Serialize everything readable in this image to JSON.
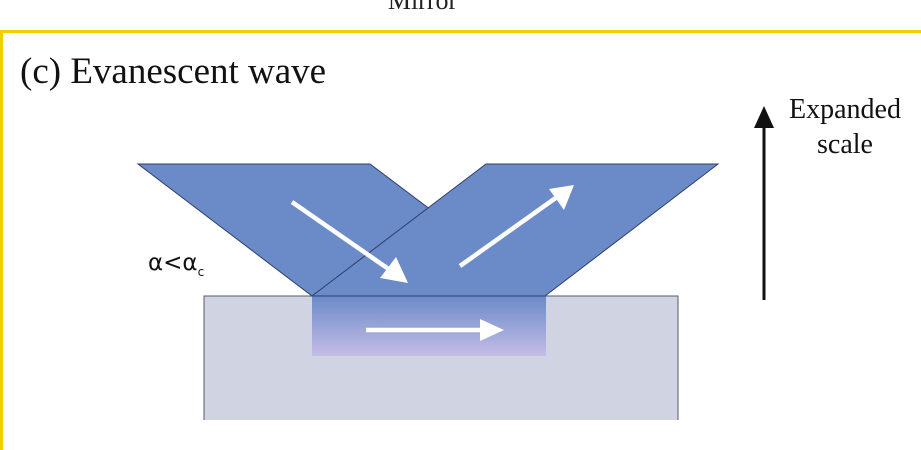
{
  "caption_above": "Mirror",
  "panel_title": "(c) Evanescent wave",
  "scale_label_line1": "Expanded",
  "scale_label_line2": "scale",
  "angle_label": "α<α",
  "angle_subscript": "c",
  "colors": {
    "frame": "#f0cf00",
    "beam": "#6b8ac8",
    "substrate": "#cfd3e2",
    "evanescent_top": "#6b8ac8",
    "evanescent_bottom": "#c4bde6",
    "arrow": "#ffffff",
    "scale_arrow": "#111111"
  }
}
